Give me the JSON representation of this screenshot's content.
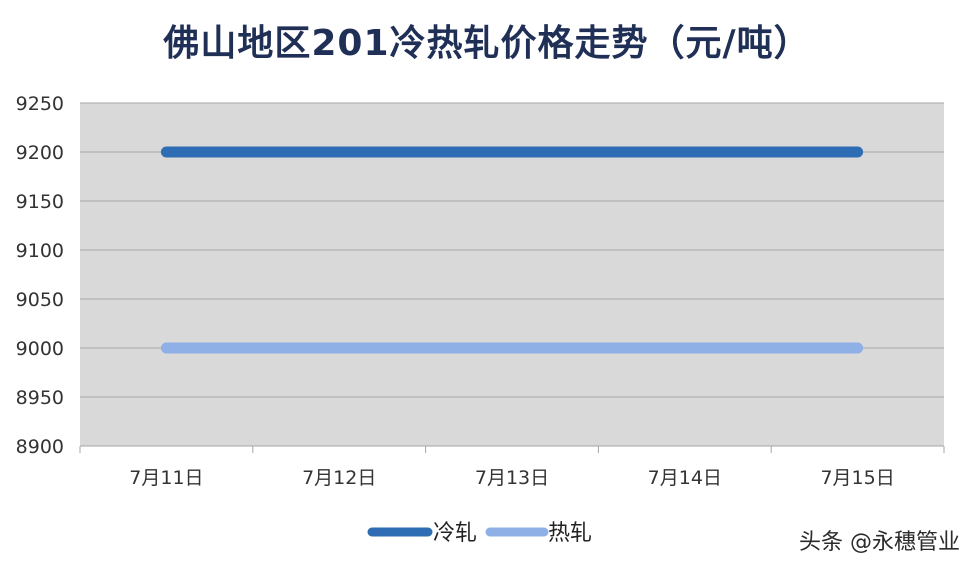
{
  "chart_data": {
    "type": "line",
    "title": "佛山地区201冷热轧价格走势（元/吨）",
    "categories": [
      "7月11日",
      "7月12日",
      "7月13日",
      "7月14日",
      "7月15日"
    ],
    "series": [
      {
        "name": "冷轧",
        "values": [
          9200,
          9200,
          9200,
          9200,
          9200
        ],
        "color": "#2e6db4"
      },
      {
        "name": "热轧",
        "values": [
          9000,
          9000,
          9000,
          9000,
          9000
        ],
        "color": "#8fb0e6"
      }
    ],
    "ylim": [
      8900,
      9250
    ],
    "yticks": [
      8900,
      8950,
      9000,
      9050,
      9100,
      9150,
      9200,
      9250
    ],
    "grid": true,
    "legend": "bottom",
    "plot_background": "#d9d9d9"
  },
  "watermark": "头条 @永穗管业"
}
